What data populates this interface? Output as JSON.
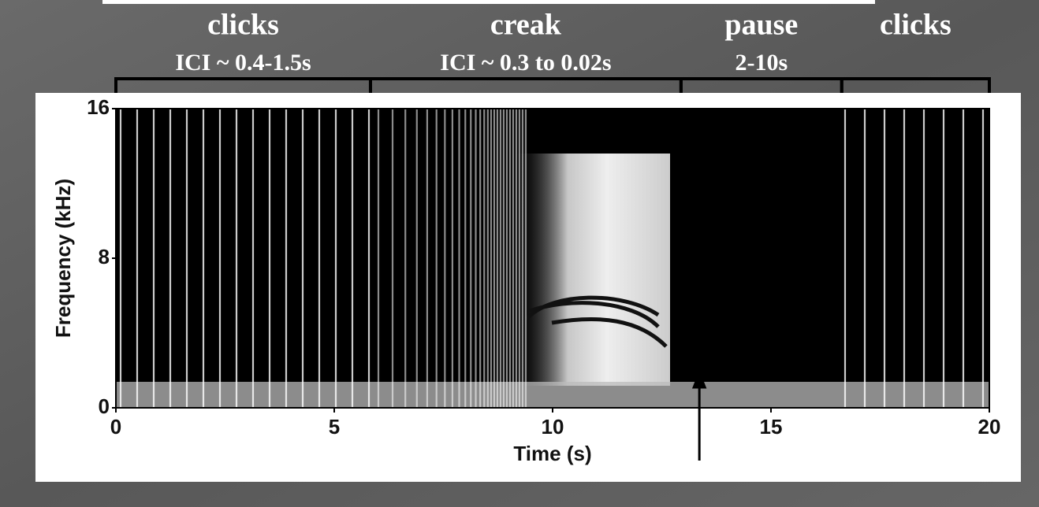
{
  "chart_data": {
    "type": "spectrogram",
    "xlabel": "Time (s)",
    "ylabel": "Frequency (kHz)",
    "xlim": [
      0,
      20
    ],
    "ylim": [
      0,
      16
    ],
    "xticks": [
      0,
      5,
      10,
      15,
      20
    ],
    "yticks": [
      0,
      8,
      16
    ],
    "segments": [
      {
        "label": "clicks",
        "sublabel": "ICI ~ 0.4-1.5s",
        "start": 0,
        "end": 5.83
      },
      {
        "label": "creak",
        "sublabel": "ICI ~ 0.3 to 0.02s",
        "start": 5.83,
        "end": 12.94
      },
      {
        "label": "pause",
        "sublabel": "2-10s",
        "start": 12.94,
        "end": 16.62
      },
      {
        "label": "clicks",
        "start": 16.62,
        "end": 20
      }
    ],
    "marker_x": 13.36
  }
}
